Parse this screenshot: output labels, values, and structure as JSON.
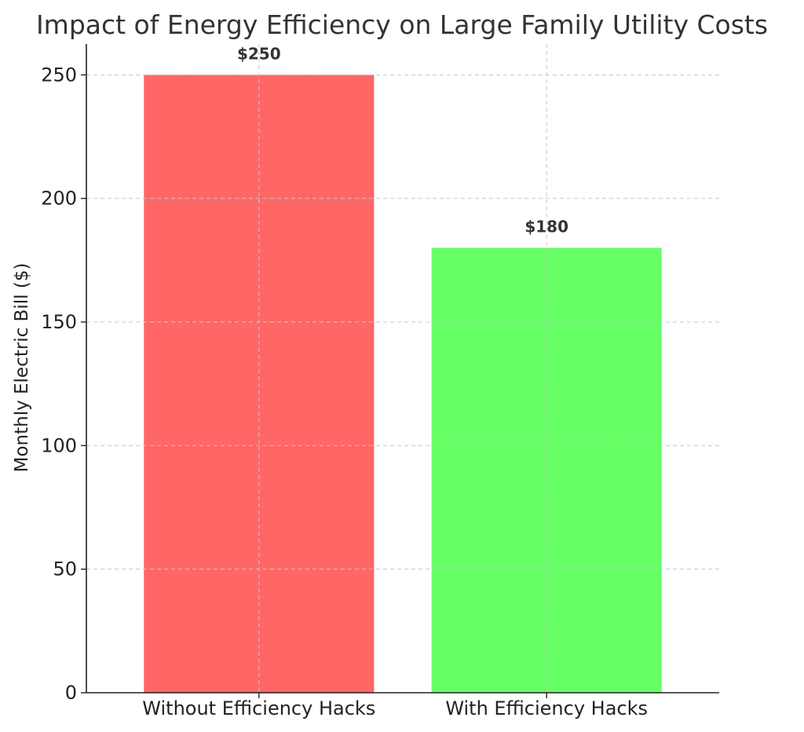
{
  "chart_data": {
    "type": "bar",
    "title": "Impact of Energy Efficiency on Large Family Utility Costs",
    "xlabel": "",
    "ylabel": "Monthly Electric Bill ($)",
    "categories": [
      "Without Efficiency Hacks",
      "With Efficiency Hacks"
    ],
    "values": [
      250,
      180
    ],
    "data_labels": [
      "$250",
      "$180"
    ],
    "colors": [
      "#ff6666",
      "#66ff66"
    ],
    "ylim": [
      0,
      262.5
    ],
    "yticks": [
      0,
      50,
      100,
      150,
      200,
      250
    ],
    "grid": true
  }
}
